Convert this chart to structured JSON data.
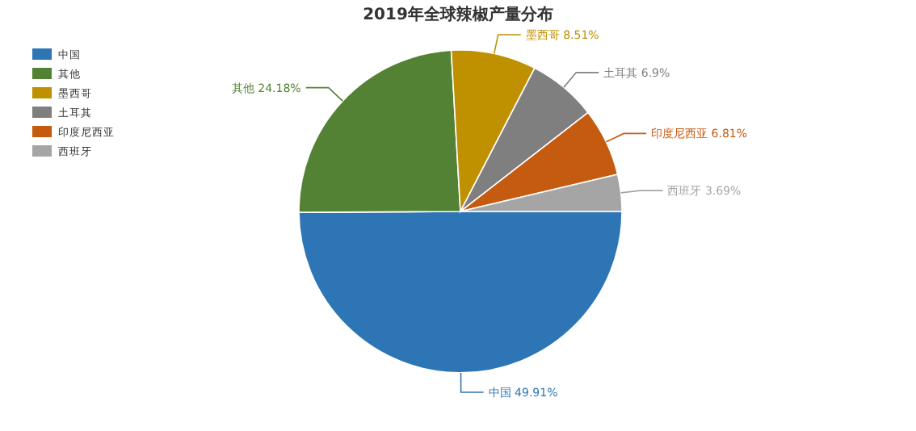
{
  "chart_data": {
    "type": "pie",
    "title": "2019年全球辣椒产量分布",
    "categories": [
      "中国",
      "其他",
      "墨西哥",
      "土耳其",
      "印度尼西亚",
      "西班牙"
    ],
    "values": [
      49.91,
      24.18,
      8.51,
      6.9,
      6.81,
      3.69
    ],
    "value_labels": [
      "49.91%",
      "24.18%",
      "8.51%",
      "6.9%",
      "6.81%",
      "3.69%"
    ],
    "colors": [
      "#2e75b6",
      "#548235",
      "#bf9000",
      "#7f7f7f",
      "#c55a11",
      "#a5a5a5"
    ],
    "legend": "top left"
  }
}
